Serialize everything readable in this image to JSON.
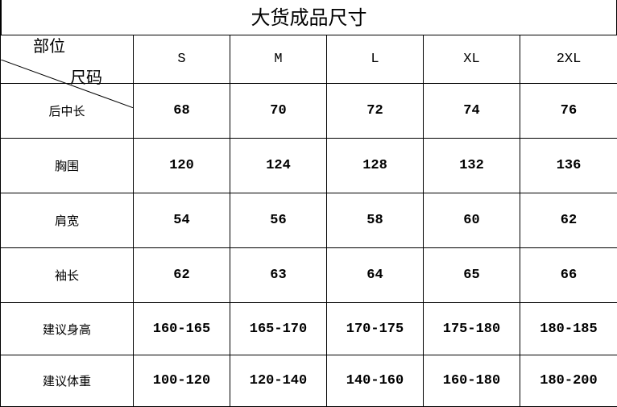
{
  "title": "大货成品尺寸",
  "corner": {
    "top": "尺码",
    "bottom": "部位"
  },
  "sizes": [
    "S",
    "M",
    "L",
    "XL",
    "2XL"
  ],
  "rows": [
    {
      "label": "后中长",
      "values": [
        "68",
        "70",
        "72",
        "74",
        "76"
      ]
    },
    {
      "label": "胸围",
      "values": [
        "120",
        "124",
        "128",
        "132",
        "136"
      ]
    },
    {
      "label": "肩宽",
      "values": [
        "54",
        "56",
        "58",
        "60",
        "62"
      ]
    },
    {
      "label": "袖长",
      "values": [
        "62",
        "63",
        "64",
        "65",
        "66"
      ]
    },
    {
      "label": "建议身高",
      "values": [
        "160-165",
        "165-170",
        "170-175",
        "175-180",
        "180-185"
      ]
    },
    {
      "label": "建议体重",
      "values": [
        "100-120",
        "120-140",
        "140-160",
        "160-180",
        "180-200"
      ]
    }
  ]
}
